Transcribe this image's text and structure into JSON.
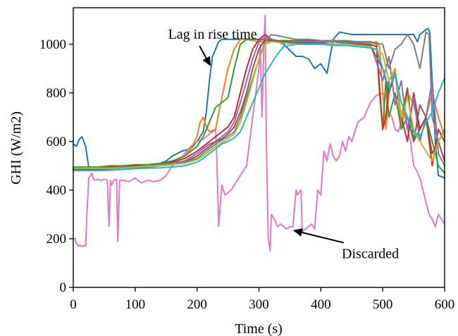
{
  "chart_data": {
    "type": "line",
    "xlabel": "Time (s)",
    "ylabel": "GHI (W/m2)",
    "xlim": [
      0,
      600
    ],
    "ylim": [
      0,
      1150
    ],
    "xticks": [
      0,
      100,
      200,
      300,
      400,
      500,
      600
    ],
    "yticks": [
      0,
      200,
      400,
      600,
      800,
      1000
    ],
    "grid": false,
    "legend": "none",
    "series": [
      {
        "color": "#1f77b4",
        "x": [
          0,
          5,
          10,
          14,
          20,
          25,
          30,
          40,
          60,
          80,
          100,
          120,
          140,
          150,
          160,
          175,
          190,
          200,
          210,
          215,
          220,
          225,
          230,
          235,
          240,
          250,
          260,
          280,
          300,
          320,
          340,
          360,
          370,
          380,
          390,
          400,
          410,
          420,
          430,
          440,
          450,
          460,
          470,
          480,
          490,
          500,
          510,
          520,
          530,
          540,
          550,
          556,
          560,
          565,
          570,
          573,
          576,
          580,
          585,
          590,
          595,
          600
        ],
        "y": [
          590,
          580,
          610,
          620,
          580,
          492,
          490,
          490,
          490,
          495,
          500,
          500,
          510,
          520,
          540,
          560,
          570,
          600,
          640,
          720,
          850,
          950,
          980,
          1010,
          1020,
          1020,
          1020,
          1020,
          1020,
          1020,
          1000,
          950,
          950,
          940,
          900,
          920,
          880,
          1020,
          1050,
          1045,
          1040,
          1040,
          1040,
          1040,
          1040,
          1040,
          1040,
          1040,
          1040,
          1040,
          1040,
          1010,
          1040,
          1050,
          1060,
          1065,
          1050,
          850,
          600,
          460,
          455,
          450
        ]
      },
      {
        "color": "#e377c2",
        "x": [
          0,
          3,
          5,
          8,
          10,
          12,
          15,
          20,
          22,
          25,
          28,
          30,
          32,
          35,
          40,
          45,
          50,
          55,
          58,
          60,
          62,
          65,
          70,
          72,
          75,
          80,
          90,
          100,
          110,
          120,
          130,
          140,
          150,
          160,
          170,
          180,
          190,
          200,
          210,
          215,
          220,
          225,
          230,
          232,
          235,
          240,
          245,
          250,
          255,
          260,
          265,
          270,
          275,
          280,
          285,
          290,
          295,
          300,
          302,
          305,
          308,
          310,
          312,
          315,
          318,
          320,
          325,
          330,
          335,
          340,
          345,
          350,
          355,
          360,
          362,
          365,
          368,
          370,
          375,
          380,
          385,
          390,
          395,
          400,
          405,
          410,
          415,
          420,
          425,
          430,
          435,
          440,
          445,
          450,
          455,
          460,
          470,
          480,
          490,
          500,
          505,
          510,
          515,
          520,
          525,
          530,
          535,
          540,
          545,
          550,
          555,
          560,
          565,
          570,
          575,
          580,
          585,
          590,
          595,
          600
        ],
        "y": [
          200,
          200,
          180,
          170,
          175,
          170,
          170,
          170,
          300,
          450,
          460,
          470,
          450,
          440,
          445,
          440,
          445,
          440,
          250,
          440,
          420,
          440,
          445,
          190,
          440,
          440,
          435,
          450,
          430,
          440,
          435,
          440,
          460,
          500,
          520,
          550,
          580,
          600,
          610,
          620,
          630,
          640,
          650,
          520,
          250,
          420,
          380,
          390,
          400,
          420,
          440,
          460,
          480,
          500,
          600,
          700,
          800,
          900,
          1000,
          700,
          1000,
          1120,
          600,
          200,
          150,
          300,
          280,
          250,
          260,
          250,
          240,
          250,
          250,
          400,
          380,
          390,
          400,
          230,
          240,
          250,
          260,
          240,
          400,
          380,
          560,
          520,
          590,
          540,
          520,
          540,
          600,
          560,
          620,
          600,
          640,
          680,
          700,
          760,
          790,
          800,
          790,
          720,
          700,
          650,
          640,
          680,
          720,
          650,
          600,
          500,
          480,
          450,
          400,
          350,
          300,
          280,
          250,
          300,
          280,
          260
        ]
      },
      {
        "color": "#ff7f0e",
        "x": [
          0,
          20,
          40,
          60,
          80,
          100,
          120,
          140,
          160,
          180,
          190,
          200,
          205,
          210,
          215,
          220,
          230,
          240,
          250,
          260,
          270,
          280,
          300,
          320,
          340,
          360,
          380,
          400,
          420,
          440,
          460,
          480,
          490,
          495,
          500,
          505,
          510,
          520,
          530,
          540,
          550,
          560,
          570,
          580,
          590,
          600
        ],
        "y": [
          485,
          485,
          485,
          490,
          490,
          490,
          500,
          510,
          520,
          540,
          570,
          620,
          680,
          700,
          660,
          640,
          650,
          780,
          900,
          980,
          1020,
          1020,
          1010,
          1010,
          1010,
          1010,
          1010,
          1010,
          1010,
          1010,
          1010,
          1005,
          1010,
          990,
          800,
          650,
          800,
          900,
          650,
          800,
          750,
          650,
          700,
          800,
          700,
          620
        ]
      },
      {
        "color": "#2ca02c",
        "x": [
          0,
          20,
          40,
          60,
          80,
          100,
          120,
          140,
          160,
          180,
          200,
          210,
          220,
          230,
          240,
          250,
          260,
          270,
          280,
          290,
          300,
          320,
          340,
          360,
          380,
          400,
          420,
          440,
          460,
          480,
          490,
          500,
          505,
          510,
          520,
          530,
          540,
          550,
          560,
          570,
          580,
          590,
          600
        ],
        "y": [
          495,
          495,
          495,
          500,
          500,
          505,
          505,
          510,
          520,
          540,
          580,
          620,
          680,
          740,
          760,
          780,
          900,
          1000,
          1020,
          1020,
          1020,
          1015,
          1015,
          1015,
          1015,
          1010,
          1010,
          1010,
          1010,
          1010,
          1000,
          650,
          850,
          700,
          800,
          650,
          700,
          600,
          650,
          700,
          600,
          500,
          470
        ]
      },
      {
        "color": "#d62728",
        "x": [
          0,
          20,
          40,
          60,
          80,
          100,
          120,
          140,
          160,
          180,
          200,
          210,
          220,
          230,
          240,
          250,
          260,
          270,
          280,
          290,
          300,
          310,
          320,
          340,
          360,
          380,
          400,
          420,
          440,
          460,
          480,
          490,
          495,
          500,
          505,
          510,
          520,
          530,
          540,
          550,
          560,
          570,
          580,
          590,
          600
        ],
        "y": [
          490,
          490,
          490,
          495,
          495,
          500,
          500,
          505,
          515,
          530,
          560,
          580,
          600,
          620,
          640,
          660,
          700,
          800,
          900,
          980,
          1020,
          1040,
          1020,
          1010,
          1010,
          1010,
          1010,
          1010,
          1005,
          1005,
          1000,
          990,
          800,
          650,
          700,
          850,
          900,
          700,
          600,
          800,
          650,
          700,
          500,
          650,
          600
        ]
      },
      {
        "color": "#9467bd",
        "x": [
          0,
          20,
          40,
          60,
          80,
          100,
          120,
          140,
          160,
          180,
          200,
          210,
          220,
          230,
          240,
          250,
          260,
          270,
          280,
          290,
          300,
          310,
          320,
          340,
          360,
          380,
          400,
          420,
          440,
          460,
          480,
          500,
          510,
          520,
          530,
          540,
          550,
          560,
          570,
          580,
          590,
          600
        ],
        "y": [
          490,
          490,
          490,
          490,
          495,
          495,
          500,
          505,
          510,
          520,
          550,
          570,
          590,
          600,
          620,
          640,
          680,
          760,
          850,
          940,
          1010,
          1030,
          1020,
          1010,
          1010,
          1010,
          1010,
          1010,
          1005,
          1005,
          1000,
          850,
          950,
          750,
          850,
          650,
          780,
          600,
          700,
          850,
          550,
          500
        ]
      },
      {
        "color": "#8c564b",
        "x": [
          0,
          20,
          40,
          60,
          80,
          100,
          120,
          140,
          160,
          180,
          200,
          210,
          220,
          230,
          240,
          250,
          260,
          270,
          280,
          290,
          300,
          310,
          320,
          340,
          360,
          380,
          400,
          420,
          440,
          460,
          480,
          500,
          510,
          520,
          530,
          540,
          550,
          560,
          570,
          580,
          590,
          600
        ],
        "y": [
          485,
          485,
          485,
          488,
          490,
          492,
          495,
          500,
          505,
          515,
          540,
          560,
          580,
          600,
          610,
          630,
          660,
          720,
          800,
          900,
          980,
          1020,
          1015,
          1010,
          1005,
          1005,
          1005,
          1000,
          1000,
          1000,
          995,
          900,
          800,
          880,
          700,
          820,
          600,
          750,
          700,
          550,
          600,
          520
        ]
      },
      {
        "color": "#7f7f7f",
        "x": [
          0,
          20,
          40,
          60,
          80,
          100,
          120,
          140,
          160,
          180,
          200,
          210,
          220,
          230,
          240,
          250,
          260,
          270,
          280,
          290,
          300,
          310,
          320,
          340,
          360,
          380,
          400,
          420,
          440,
          460,
          480,
          500,
          510,
          520,
          530,
          540,
          550,
          560,
          570,
          575,
          580,
          590,
          600
        ],
        "y": [
          490,
          490,
          490,
          490,
          492,
          495,
          498,
          502,
          508,
          515,
          530,
          550,
          570,
          590,
          605,
          620,
          640,
          700,
          780,
          860,
          940,
          1010,
          1040,
          1030,
          1020,
          1020,
          1015,
          1015,
          1015,
          1010,
          1010,
          1000,
          900,
          980,
          1000,
          1040,
          1000,
          900,
          1050,
          1040,
          700,
          600,
          650
        ]
      },
      {
        "color": "#bcbd22",
        "x": [
          0,
          20,
          40,
          60,
          80,
          100,
          120,
          140,
          160,
          180,
          200,
          210,
          220,
          230,
          240,
          250,
          260,
          270,
          280,
          290,
          300,
          310,
          320,
          340,
          360,
          380,
          400,
          420,
          440,
          460,
          480,
          500,
          510,
          520,
          530,
          540,
          550,
          560,
          570,
          580,
          590,
          600
        ],
        "y": [
          490,
          490,
          490,
          490,
          490,
          495,
          498,
          500,
          505,
          510,
          525,
          540,
          560,
          580,
          595,
          610,
          630,
          680,
          760,
          850,
          940,
          1000,
          1010,
          1005,
          1000,
          1000,
          1000,
          1000,
          1000,
          995,
          990,
          960,
          850,
          900,
          700,
          780,
          650,
          600,
          560,
          520,
          600,
          640
        ]
      },
      {
        "color": "#17becf",
        "x": [
          0,
          20,
          40,
          60,
          80,
          100,
          120,
          140,
          160,
          180,
          200,
          210,
          220,
          230,
          240,
          250,
          260,
          270,
          280,
          290,
          300,
          310,
          320,
          330,
          340,
          360,
          380,
          400,
          420,
          440,
          460,
          480,
          490,
          500,
          510,
          520,
          530,
          540,
          550,
          560,
          570,
          580,
          590,
          600
        ],
        "y": [
          480,
          480,
          480,
          482,
          485,
          488,
          490,
          492,
          495,
          500,
          515,
          530,
          550,
          570,
          590,
          600,
          615,
          640,
          700,
          760,
          820,
          880,
          920,
          960,
          990,
          1000,
          1000,
          1000,
          995,
          995,
          990,
          985,
          980,
          900,
          820,
          880,
          760,
          700,
          640,
          620,
          680,
          720,
          800,
          860
        ]
      }
    ],
    "annotations": [
      {
        "text": "Lag in rise time",
        "xy": [
          222,
          910
        ],
        "xytext": [
          225,
          1022
        ]
      },
      {
        "text": "Discarded",
        "xy": [
          355,
          235
        ],
        "xytext": [
          480,
          120
        ]
      }
    ]
  }
}
